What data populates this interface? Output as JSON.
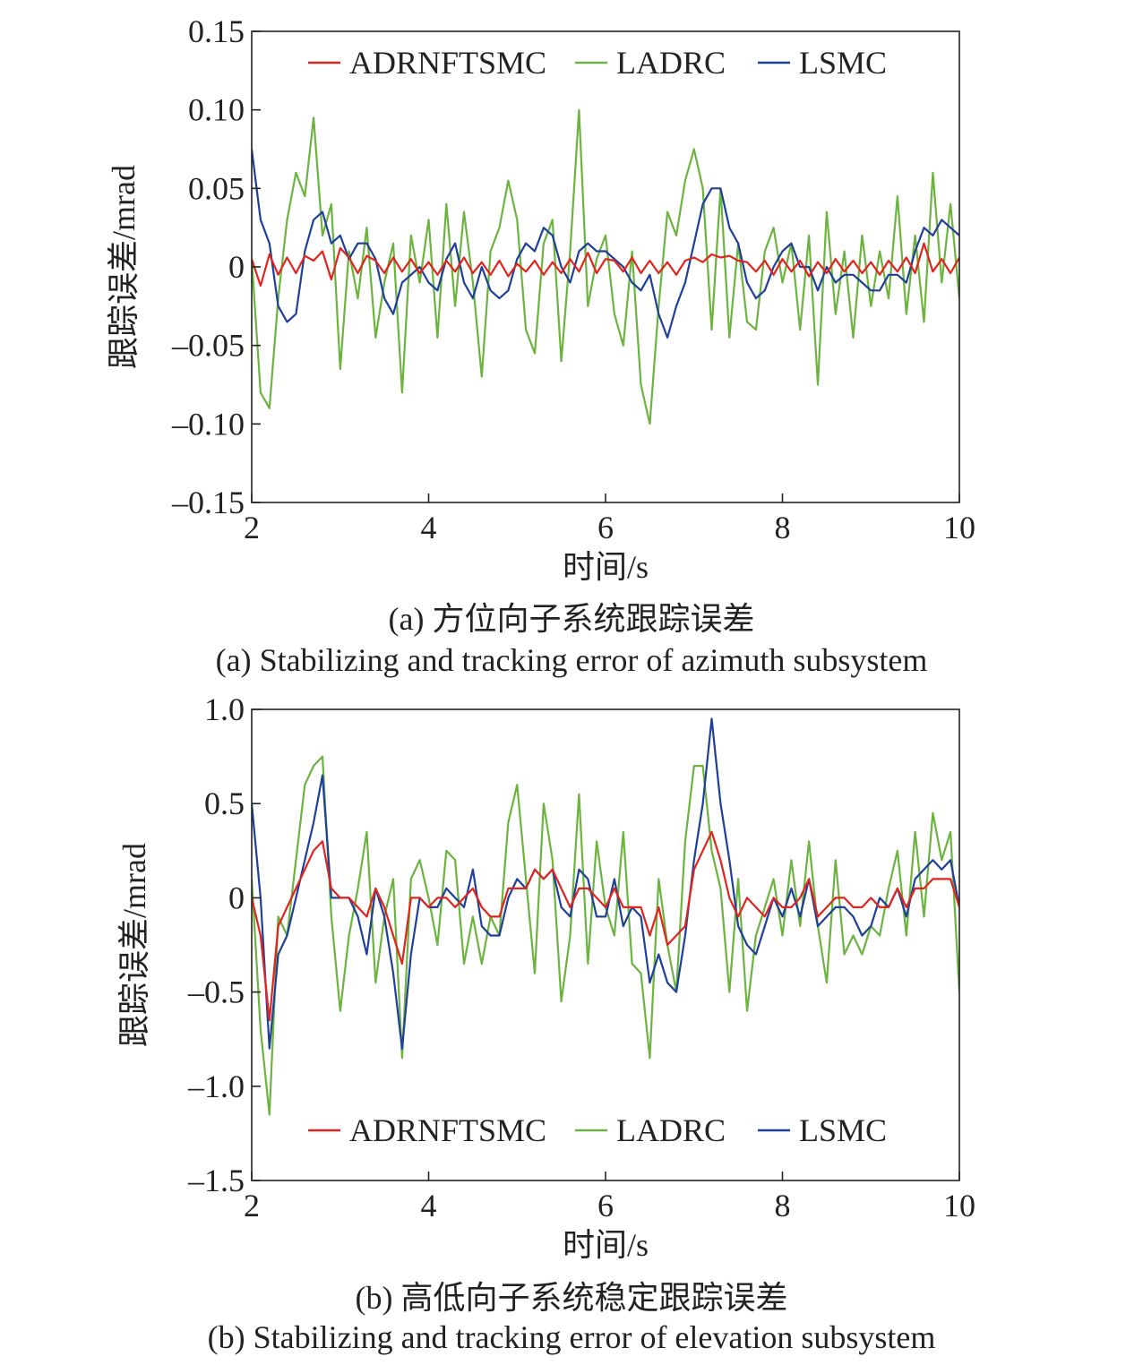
{
  "figure": {
    "caption_a_cn": "(a) 方位向子系统跟踪误差",
    "caption_a_en": "(a) Stabilizing and tracking error of azimuth subsystem",
    "caption_b_cn": "(b) 高低向子系统稳定跟踪误差",
    "caption_b_en": "(b) Stabilizing and tracking error of elevation subsystem"
  },
  "chart_data": [
    {
      "type": "line",
      "xlabel": "时间/s",
      "ylabel": "跟踪误差/mrad",
      "xlim": [
        2,
        10
      ],
      "ylim": [
        -0.15,
        0.15
      ],
      "xticks": [
        2,
        4,
        6,
        8,
        10
      ],
      "xtick_labels": [
        "2",
        "4",
        "6",
        "8",
        "10"
      ],
      "yticks": [
        -0.15,
        -0.1,
        -0.05,
        0,
        0.05,
        0.1,
        0.15
      ],
      "ytick_labels": [
        "–0.15",
        "–0.10",
        "–0.05",
        "0",
        "0.05",
        "0.10",
        "0.15"
      ],
      "legend_position": "top",
      "grid": false,
      "x": [
        2.0,
        2.1,
        2.2,
        2.3,
        2.4,
        2.5,
        2.6,
        2.7,
        2.8,
        2.9,
        3.0,
        3.1,
        3.2,
        3.3,
        3.4,
        3.5,
        3.6,
        3.7,
        3.8,
        3.9,
        4.0,
        4.1,
        4.2,
        4.3,
        4.4,
        4.5,
        4.6,
        4.7,
        4.8,
        4.9,
        5.0,
        5.1,
        5.2,
        5.3,
        5.4,
        5.5,
        5.6,
        5.7,
        5.8,
        5.9,
        6.0,
        6.1,
        6.2,
        6.3,
        6.4,
        6.5,
        6.6,
        6.7,
        6.8,
        6.9,
        7.0,
        7.1,
        7.2,
        7.3,
        7.4,
        7.5,
        7.6,
        7.7,
        7.8,
        7.9,
        8.0,
        8.1,
        8.2,
        8.3,
        8.4,
        8.5,
        8.6,
        8.7,
        8.8,
        8.9,
        9.0,
        9.1,
        9.2,
        9.3,
        9.4,
        9.5,
        9.6,
        9.7,
        9.8,
        9.9,
        10.0
      ],
      "series": [
        {
          "name": "ADRNFTSMC",
          "color": "#e0251f",
          "values": [
            0.005,
            -0.012,
            0.008,
            -0.005,
            0.006,
            -0.004,
            0.007,
            0.004,
            0.01,
            -0.008,
            0.012,
            0.006,
            -0.004,
            0.007,
            0.004,
            -0.004,
            0.006,
            -0.003,
            0.005,
            -0.004,
            0.003,
            -0.005,
            0.004,
            -0.003,
            0.006,
            -0.004,
            0.003,
            -0.005,
            0.004,
            -0.006,
            0.002,
            -0.003,
            0.004,
            -0.005,
            0.003,
            -0.004,
            0.005,
            -0.003,
            0.009,
            -0.004,
            0.005,
            0.004,
            -0.003,
            0.006,
            -0.004,
            0.004,
            -0.004,
            0.003,
            -0.005,
            0.004,
            0.006,
            0.003,
            0.008,
            0.006,
            0.007,
            0.004,
            0.003,
            -0.003,
            0.004,
            -0.005,
            0.005,
            -0.003,
            0.004,
            -0.006,
            0.003,
            -0.004,
            0.005,
            -0.003,
            0.004,
            -0.004,
            0.003,
            -0.005,
            0.004,
            -0.003,
            0.006,
            -0.004,
            0.015,
            -0.003,
            0.005,
            -0.004,
            0.006
          ]
        },
        {
          "name": "LADRC",
          "color": "#6cb33f",
          "values": [
            0.005,
            -0.08,
            -0.09,
            -0.02,
            0.03,
            0.06,
            0.045,
            0.095,
            0.02,
            0.04,
            -0.065,
            0.01,
            -0.02,
            0.025,
            -0.045,
            -0.01,
            0.015,
            -0.08,
            0.02,
            -0.01,
            0.03,
            -0.045,
            0.04,
            -0.025,
            0.035,
            -0.01,
            -0.07,
            0.01,
            0.025,
            0.055,
            0.03,
            -0.04,
            -0.055,
            0.015,
            0.03,
            -0.06,
            0.01,
            0.1,
            -0.025,
            0.005,
            0.02,
            -0.03,
            -0.05,
            0.01,
            -0.075,
            -0.1,
            -0.025,
            0.035,
            0.02,
            0.055,
            0.075,
            0.05,
            -0.04,
            0.05,
            -0.045,
            0.015,
            -0.035,
            -0.04,
            0.01,
            0.025,
            -0.01,
            0.015,
            -0.04,
            0.02,
            -0.075,
            0.035,
            -0.03,
            0.01,
            -0.045,
            0.02,
            -0.025,
            0.01,
            -0.02,
            0.045,
            -0.03,
            0.02,
            -0.035,
            0.06,
            -0.01,
            0.04,
            -0.02
          ]
        },
        {
          "name": "LSMC",
          "color": "#1f3f99",
          "values": [
            0.075,
            0.03,
            0.015,
            -0.025,
            -0.035,
            -0.03,
            0.01,
            0.03,
            0.035,
            0.015,
            0.02,
            0.005,
            0.015,
            0.015,
            0.005,
            -0.02,
            -0.03,
            -0.01,
            -0.005,
            0.0,
            -0.01,
            -0.015,
            0.005,
            0.015,
            -0.01,
            -0.02,
            0.0,
            -0.015,
            -0.02,
            -0.015,
            0.005,
            0.015,
            0.01,
            0.025,
            0.02,
            0.0,
            -0.01,
            0.01,
            0.015,
            0.01,
            0.01,
            0.005,
            0.0,
            -0.01,
            -0.015,
            -0.005,
            -0.03,
            -0.045,
            -0.025,
            -0.01,
            0.015,
            0.04,
            0.05,
            0.05,
            0.025,
            0.015,
            -0.01,
            -0.02,
            -0.015,
            0.0,
            0.01,
            0.015,
            0.0,
            0.0,
            -0.015,
            0.0,
            -0.01,
            -0.005,
            -0.005,
            -0.01,
            -0.015,
            -0.015,
            -0.005,
            -0.005,
            -0.01,
            0.01,
            0.025,
            0.02,
            0.03,
            0.025,
            0.02
          ]
        }
      ]
    },
    {
      "type": "line",
      "xlabel": "时间/s",
      "ylabel": "跟踪误差/mrad",
      "xlim": [
        2,
        10
      ],
      "ylim": [
        -1.5,
        1.0
      ],
      "xticks": [
        2,
        4,
        6,
        8,
        10
      ],
      "xtick_labels": [
        "2",
        "4",
        "6",
        "8",
        "10"
      ],
      "yticks": [
        -1.5,
        -1.0,
        -0.5,
        0,
        0.5,
        1.0
      ],
      "ytick_labels": [
        "–1.5",
        "–1.0",
        "–0.5",
        "0",
        "0.5",
        "1.0"
      ],
      "legend_position": "bottom",
      "grid": false,
      "x": [
        2.0,
        2.1,
        2.2,
        2.3,
        2.4,
        2.5,
        2.6,
        2.7,
        2.8,
        2.9,
        3.0,
        3.1,
        3.2,
        3.3,
        3.4,
        3.5,
        3.6,
        3.7,
        3.8,
        3.9,
        4.0,
        4.1,
        4.2,
        4.3,
        4.4,
        4.5,
        4.6,
        4.7,
        4.8,
        4.9,
        5.0,
        5.1,
        5.2,
        5.3,
        5.4,
        5.5,
        5.6,
        5.7,
        5.8,
        5.9,
        6.0,
        6.1,
        6.2,
        6.3,
        6.4,
        6.5,
        6.6,
        6.7,
        6.8,
        6.9,
        7.0,
        7.1,
        7.2,
        7.3,
        7.4,
        7.5,
        7.6,
        7.7,
        7.8,
        7.9,
        8.0,
        8.1,
        8.2,
        8.3,
        8.4,
        8.5,
        8.6,
        8.7,
        8.8,
        8.9,
        9.0,
        9.1,
        9.2,
        9.3,
        9.4,
        9.5,
        9.6,
        9.7,
        9.8,
        9.9,
        10.0
      ],
      "series": [
        {
          "name": "ADRNFTSMC",
          "color": "#e0251f",
          "values": [
            0.0,
            -0.2,
            -0.65,
            -0.15,
            -0.05,
            0.05,
            0.15,
            0.25,
            0.3,
            0.05,
            0.0,
            0.0,
            -0.05,
            -0.1,
            0.05,
            -0.05,
            -0.2,
            -0.35,
            0.0,
            0.0,
            -0.05,
            0.0,
            0.0,
            -0.05,
            0.0,
            0.05,
            -0.05,
            -0.1,
            -0.1,
            0.05,
            0.05,
            0.05,
            0.15,
            0.1,
            0.15,
            0.05,
            -0.05,
            0.05,
            0.05,
            0.0,
            -0.05,
            0.05,
            -0.05,
            -0.05,
            -0.05,
            -0.2,
            -0.05,
            -0.25,
            -0.2,
            -0.15,
            0.15,
            0.25,
            0.35,
            0.2,
            0.0,
            -0.1,
            0.0,
            -0.05,
            -0.1,
            0.0,
            -0.05,
            -0.05,
            0.0,
            0.1,
            -0.1,
            -0.05,
            0.0,
            0.0,
            -0.05,
            -0.05,
            0.0,
            -0.05,
            -0.05,
            0.05,
            -0.05,
            0.05,
            0.05,
            0.1,
            0.1,
            0.1,
            -0.05
          ]
        },
        {
          "name": "LADRC",
          "color": "#6cb33f",
          "values": [
            0.1,
            -0.7,
            -1.15,
            -0.1,
            -0.2,
            0.2,
            0.6,
            0.7,
            0.75,
            -0.1,
            -0.6,
            -0.2,
            0.05,
            0.35,
            -0.45,
            -0.1,
            0.1,
            -0.85,
            0.1,
            0.2,
            0.0,
            -0.25,
            0.25,
            0.2,
            -0.35,
            -0.1,
            -0.35,
            -0.1,
            -0.2,
            0.4,
            0.6,
            0.1,
            -0.4,
            0.5,
            0.2,
            -0.55,
            -0.2,
            0.55,
            -0.35,
            0.3,
            -0.05,
            -0.2,
            0.35,
            -0.35,
            -0.4,
            -0.85,
            0.1,
            -0.25,
            -0.5,
            0.3,
            0.7,
            0.7,
            0.25,
            0.05,
            -0.5,
            0.1,
            -0.6,
            -0.2,
            -0.05,
            0.1,
            -0.2,
            0.2,
            -0.15,
            0.3,
            -0.15,
            -0.45,
            0.2,
            -0.3,
            -0.2,
            -0.3,
            -0.15,
            -0.2,
            0.05,
            0.25,
            -0.2,
            0.35,
            -0.1,
            0.45,
            0.2,
            0.35,
            -0.5
          ]
        },
        {
          "name": "LSMC",
          "color": "#1f3f99",
          "values": [
            0.5,
            0.0,
            -0.8,
            -0.3,
            -0.2,
            0.0,
            0.2,
            0.4,
            0.65,
            0.0,
            0.0,
            0.0,
            -0.1,
            -0.3,
            0.05,
            -0.1,
            -0.4,
            -0.8,
            -0.3,
            0.0,
            -0.05,
            -0.05,
            0.05,
            0.0,
            -0.05,
            0.15,
            -0.15,
            -0.2,
            -0.2,
            0.0,
            0.1,
            0.05,
            0.15,
            0.1,
            0.15,
            -0.05,
            -0.1,
            0.15,
            0.1,
            -0.1,
            -0.1,
            0.1,
            -0.15,
            -0.05,
            -0.1,
            -0.45,
            -0.3,
            -0.45,
            -0.5,
            -0.2,
            0.2,
            0.5,
            0.95,
            0.5,
            0.2,
            -0.15,
            -0.25,
            -0.3,
            -0.15,
            0.0,
            -0.1,
            0.05,
            -0.1,
            0.1,
            -0.15,
            -0.1,
            -0.05,
            -0.05,
            -0.1,
            -0.2,
            -0.15,
            0.0,
            -0.05,
            0.05,
            -0.1,
            0.1,
            0.15,
            0.2,
            0.15,
            0.2,
            -0.05
          ]
        }
      ]
    }
  ]
}
